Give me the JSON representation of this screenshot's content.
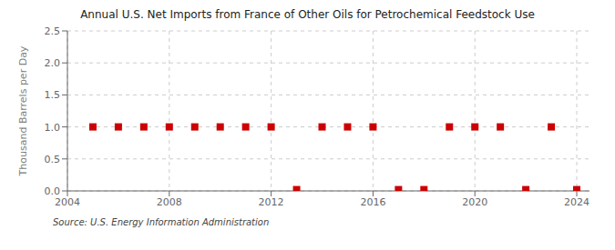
{
  "chart_data": {
    "type": "scatter",
    "title": "Annual U.S. Net Imports from France of Other Oils for Petrochemical Feedstock Use",
    "y_label": "Thousand Barrels per Day",
    "annotations": [
      "Source: U.S. Energy Information Administration"
    ],
    "x": [
      2005,
      2006,
      2007,
      2008,
      2009,
      2010,
      2011,
      2012,
      2013,
      2014,
      2015,
      2016,
      2017,
      2018,
      2019,
      2020,
      2021,
      2022,
      2023,
      2024
    ],
    "values": [
      1.0,
      1.0,
      1.0,
      1.0,
      1.0,
      1.0,
      1.0,
      1.0,
      0.02,
      1.0,
      1.0,
      1.0,
      0.02,
      0.02,
      1.0,
      1.0,
      1.0,
      0.02,
      1.0,
      0.02
    ],
    "color": "#cc0000",
    "marker": "square",
    "xlim": [
      2004,
      2024.5
    ],
    "xticks": [
      2004,
      2008,
      2012,
      2016,
      2020,
      2024
    ],
    "ylim": [
      0,
      2.5
    ],
    "yticks": [
      {
        "value": 0,
        "label": "0.0"
      },
      0.5,
      {
        "value": 1,
        "label": "1.0"
      },
      1.5,
      {
        "value": 2,
        "label": "2.0"
      },
      2.5
    ],
    "grid": true
  }
}
